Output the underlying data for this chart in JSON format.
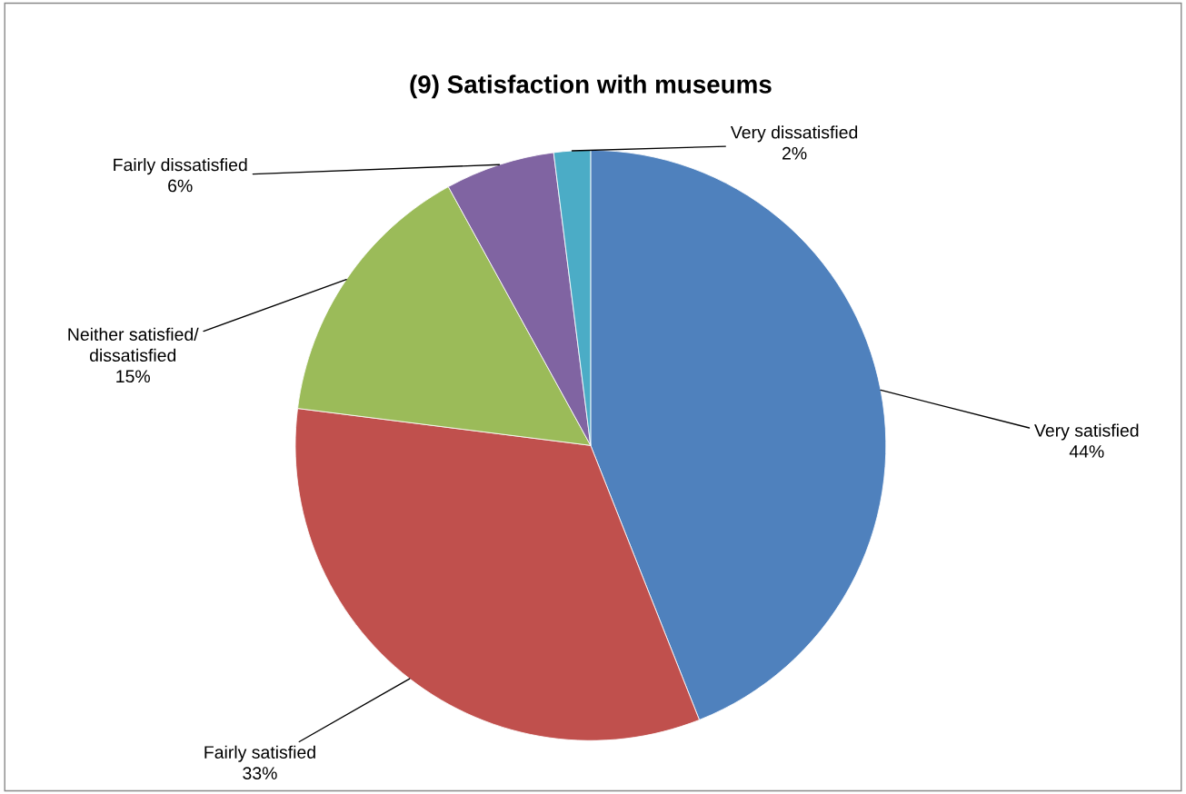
{
  "chart_data": {
    "type": "pie",
    "title": "(9) Satisfaction with museums",
    "categories": [
      "Very satisfied",
      "Fairly satisfied",
      "Neither satisfied/\ndissatisfied",
      "Fairly dissatisfied",
      "Very dissatisfied"
    ],
    "values": [
      44,
      33,
      15,
      6,
      2
    ],
    "value_labels": [
      "44%",
      "33%",
      "15%",
      "6%",
      "2%"
    ],
    "colors": [
      "#4f81bd",
      "#c0504d",
      "#9bbb59",
      "#8064a2",
      "#4bacc6"
    ],
    "legend": false
  }
}
